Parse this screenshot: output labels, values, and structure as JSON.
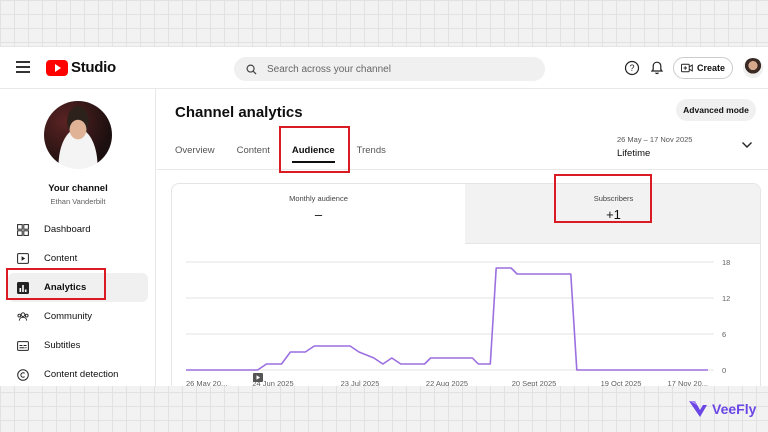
{
  "app": {
    "logo_text": "Studio"
  },
  "search": {
    "placeholder": "Search across your channel"
  },
  "topbar": {
    "create_label": "Create"
  },
  "channel": {
    "title": "Your channel",
    "name": "Ethan Vanderbilt"
  },
  "sidebar": {
    "items": [
      {
        "label": "Dashboard",
        "icon": "dashboard-icon"
      },
      {
        "label": "Content",
        "icon": "content-icon"
      },
      {
        "label": "Analytics",
        "icon": "analytics-icon",
        "active": true
      },
      {
        "label": "Community",
        "icon": "community-icon"
      },
      {
        "label": "Subtitles",
        "icon": "subtitles-icon"
      },
      {
        "label": "Content detection",
        "icon": "copyright-icon"
      }
    ]
  },
  "page": {
    "title": "Channel analytics",
    "advanced_label": "Advanced mode"
  },
  "tabs": [
    {
      "label": "Overview"
    },
    {
      "label": "Content"
    },
    {
      "label": "Audience",
      "active": true
    },
    {
      "label": "Trends"
    }
  ],
  "date_range": {
    "range": "26 May – 17 Nov 2025",
    "period": "Lifetime"
  },
  "metrics": {
    "monthly_audience": {
      "label": "Monthly audience",
      "value": "–"
    },
    "subscribers": {
      "label": "Subscribers",
      "value": "+1"
    }
  },
  "colors": {
    "accent": "#9c6fe0",
    "highlight": "#d91c24",
    "brand": "#ff0000"
  },
  "chart_data": {
    "type": "line",
    "x_ticks": [
      "26 May 20...",
      "24 Jun 2025",
      "23 Jul 2025",
      "22 Aug 2025",
      "20 Sept 2025",
      "19 Oct 2025",
      "17 Nov 20..."
    ],
    "y_ticks": [
      "18",
      "12",
      "6",
      "0"
    ],
    "ylim": [
      0,
      18
    ],
    "xlim": [
      0,
      175
    ],
    "grid": true,
    "series": [
      {
        "color": "#9c6fe0",
        "points": [
          [
            0,
            0
          ],
          [
            24,
            0
          ],
          [
            27,
            1
          ],
          [
            29,
            1
          ],
          [
            32,
            1
          ],
          [
            35,
            3
          ],
          [
            40,
            3
          ],
          [
            43,
            4
          ],
          [
            55,
            4
          ],
          [
            58,
            3
          ],
          [
            63,
            2
          ],
          [
            66,
            1
          ],
          [
            69,
            2
          ],
          [
            72,
            1
          ],
          [
            80,
            1
          ],
          [
            82,
            2
          ],
          [
            96,
            2
          ],
          [
            98,
            1
          ],
          [
            102,
            1
          ],
          [
            104,
            17
          ],
          [
            109,
            17
          ],
          [
            111,
            16
          ],
          [
            129,
            16
          ],
          [
            131,
            0
          ],
          [
            175,
            0
          ]
        ]
      }
    ]
  }
}
